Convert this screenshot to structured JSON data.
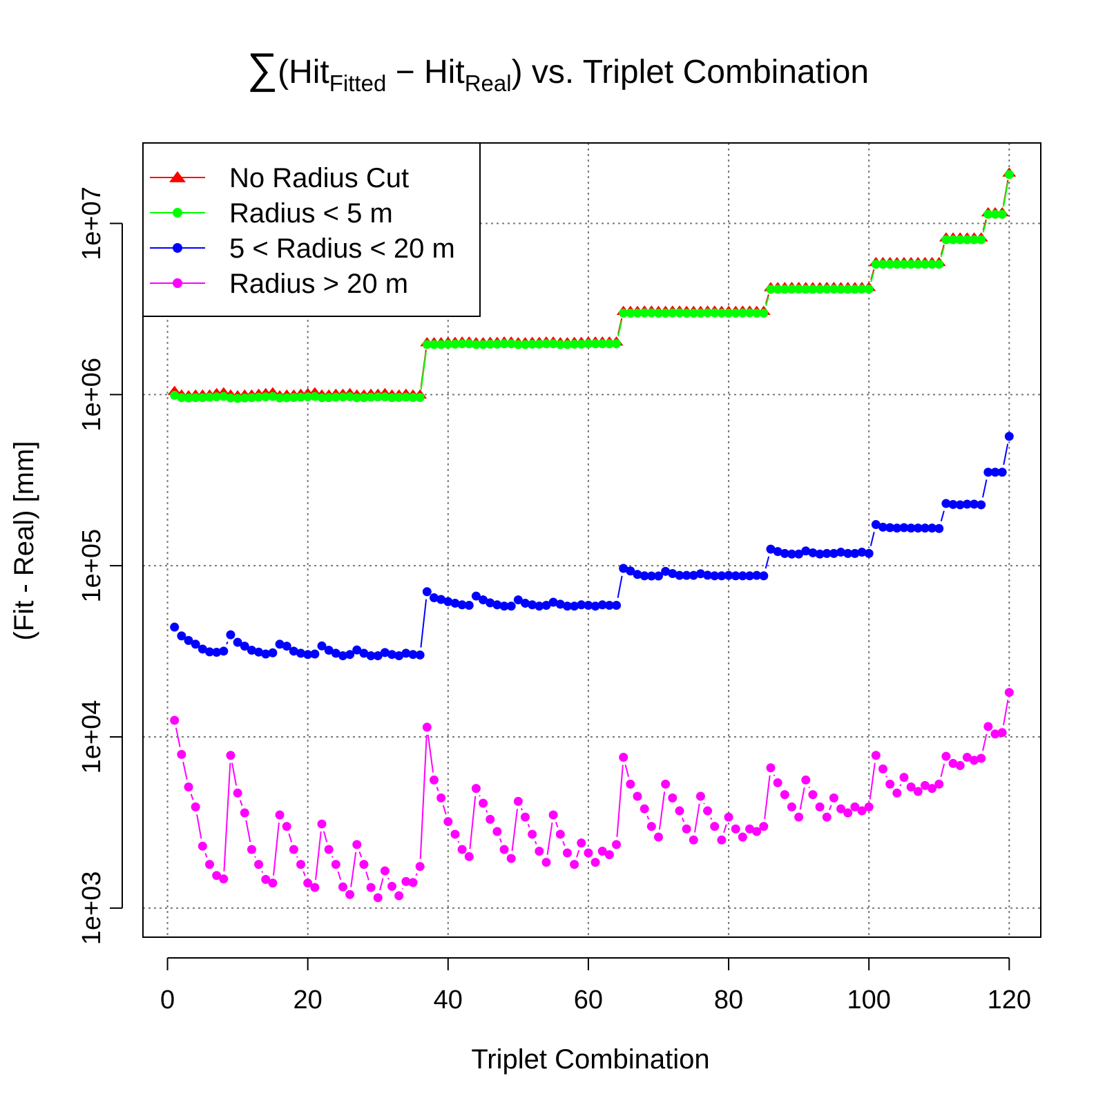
{
  "chart_data": {
    "type": "line",
    "title": {
      "sum_symbol": "∑",
      "open": "(Hit",
      "sub1": "Fitted",
      "minus": " − Hit",
      "sub2": "Real",
      "close": ") vs. Triplet Combination"
    },
    "xlabel": "Triplet Combination",
    "ylabel": "(Fit - Real) [mm]",
    "xlim": [
      -3.5,
      124.5
    ],
    "ylim_log10": [
      2.83,
      7.47
    ],
    "log_y": true,
    "grid": true,
    "legend_position": "top-left",
    "x_ticks": [
      "0",
      "20",
      "40",
      "60",
      "80",
      "100",
      "120"
    ],
    "y_ticks": [
      "1e+03",
      "1e+04",
      "1e+05",
      "1e+06",
      "1e+07"
    ],
    "x": [
      1,
      2,
      3,
      4,
      5,
      6,
      7,
      8,
      9,
      10,
      11,
      12,
      13,
      14,
      15,
      16,
      17,
      18,
      19,
      20,
      21,
      22,
      23,
      24,
      25,
      26,
      27,
      28,
      29,
      30,
      31,
      32,
      33,
      34,
      35,
      36,
      37,
      38,
      39,
      40,
      41,
      42,
      43,
      44,
      45,
      46,
      47,
      48,
      49,
      50,
      51,
      52,
      53,
      54,
      55,
      56,
      57,
      58,
      59,
      60,
      61,
      62,
      63,
      64,
      65,
      66,
      67,
      68,
      69,
      70,
      71,
      72,
      73,
      74,
      75,
      76,
      77,
      78,
      79,
      80,
      81,
      82,
      83,
      84,
      85,
      86,
      87,
      88,
      89,
      90,
      91,
      92,
      93,
      94,
      95,
      96,
      97,
      98,
      99,
      100,
      101,
      102,
      103,
      104,
      105,
      106,
      107,
      108,
      109,
      110,
      111,
      112,
      113,
      114,
      115,
      116,
      117,
      118,
      119,
      120
    ],
    "series": [
      {
        "name": "No Radius Cut",
        "color": "#ff0000",
        "marker": "triangle",
        "values": [
          1050000,
          1000000,
          990000,
          1000000,
          1000000,
          1000000,
          1020000,
          1030000,
          1000000,
          990000,
          1000000,
          1000000,
          1010000,
          1020000,
          1030000,
          990000,
          1000000,
          1000000,
          1010000,
          1020000,
          1030000,
          1000000,
          1000000,
          1010000,
          1010000,
          1020000,
          1000000,
          1000000,
          1010000,
          1010000,
          1020000,
          1000000,
          1000000,
          1010000,
          1000000,
          1000000,
          2020000,
          2020000,
          2020000,
          2030000,
          2030000,
          2040000,
          2040000,
          2020000,
          2020000,
          2030000,
          2030000,
          2040000,
          2040000,
          2020000,
          2020000,
          2030000,
          2030000,
          2040000,
          2040000,
          2020000,
          2020000,
          2030000,
          2030000,
          2040000,
          2040000,
          2040000,
          2040000,
          2040000,
          3080000,
          3080000,
          3080000,
          3090000,
          3090000,
          3080000,
          3080000,
          3090000,
          3090000,
          3080000,
          3080000,
          3080000,
          3090000,
          3090000,
          3080000,
          3080000,
          3080000,
          3090000,
          3090000,
          3080000,
          3080000,
          4240000,
          4240000,
          4240000,
          4250000,
          4250000,
          4240000,
          4240000,
          4240000,
          4250000,
          4250000,
          4240000,
          4240000,
          4240000,
          4250000,
          4250000,
          5940000,
          5940000,
          5940000,
          5940000,
          5940000,
          5940000,
          5940000,
          5940000,
          5940000,
          5940000,
          8270000,
          8270000,
          8270000,
          8270000,
          8270000,
          8270000,
          11600000,
          11600000,
          11600000,
          19800000
        ]
      },
      {
        "name": "Radius < 5 m",
        "color": "#00ff00",
        "marker": "circle",
        "values": [
          990000,
          960000,
          955000,
          960000,
          960000,
          965000,
          970000,
          975000,
          955000,
          950000,
          955000,
          960000,
          965000,
          970000,
          975000,
          955000,
          958000,
          962000,
          966000,
          970000,
          975000,
          958000,
          960000,
          965000,
          968000,
          972000,
          958000,
          960000,
          965000,
          968000,
          970000,
          960000,
          962000,
          965000,
          962000,
          962000,
          1960000,
          1960000,
          1960000,
          1970000,
          1970000,
          1980000,
          1980000,
          1960000,
          1960000,
          1970000,
          1970000,
          1980000,
          1980000,
          1960000,
          1960000,
          1970000,
          1970000,
          1980000,
          1980000,
          1960000,
          1960000,
          1970000,
          1970000,
          1980000,
          1980000,
          1980000,
          1980000,
          1980000,
          2990000,
          2990000,
          2990000,
          3000000,
          3000000,
          2990000,
          2990000,
          3000000,
          3000000,
          2990000,
          2990000,
          2990000,
          3000000,
          3000000,
          2990000,
          2990000,
          2990000,
          3000000,
          3000000,
          2990000,
          2990000,
          4120000,
          4120000,
          4120000,
          4130000,
          4130000,
          4120000,
          4120000,
          4120000,
          4130000,
          4130000,
          4120000,
          4120000,
          4120000,
          4130000,
          4130000,
          5770000,
          5770000,
          5770000,
          5770000,
          5770000,
          5770000,
          5770000,
          5770000,
          5770000,
          5770000,
          8030000,
          8030000,
          8030000,
          8030000,
          8030000,
          8030000,
          11300000,
          11300000,
          11300000,
          19300000
        ]
      },
      {
        "name": "5 < Radius < 20 m",
        "color": "#0000ff",
        "marker": "circle",
        "values": [
          43800,
          38900,
          36600,
          34800,
          32600,
          31400,
          31200,
          31700,
          39500,
          35700,
          33900,
          32100,
          31300,
          30500,
          31000,
          34800,
          33900,
          31700,
          30800,
          30300,
          30500,
          34000,
          32100,
          30800,
          29800,
          30300,
          32200,
          30800,
          29800,
          29800,
          31100,
          30300,
          29800,
          30800,
          30300,
          30100,
          70500,
          65000,
          63500,
          61700,
          60400,
          59100,
          58700,
          66500,
          63200,
          60700,
          59100,
          58100,
          58100,
          63200,
          60400,
          59100,
          58100,
          58700,
          61200,
          59600,
          58100,
          58100,
          59100,
          58700,
          58100,
          59100,
          58700,
          58700,
          96500,
          93200,
          89000,
          87300,
          87100,
          87100,
          92700,
          90000,
          87800,
          87800,
          87800,
          89800,
          88000,
          87300,
          87300,
          87800,
          87300,
          87300,
          87300,
          87800,
          87300,
          125000,
          121000,
          118000,
          117000,
          117000,
          122000,
          119000,
          117000,
          118000,
          118000,
          120000,
          118000,
          118000,
          120000,
          118000,
          174000,
          168000,
          167000,
          166000,
          167000,
          166000,
          166000,
          166000,
          166000,
          165000,
          231000,
          228000,
          227000,
          229000,
          229000,
          227000,
          352000,
          352000,
          352000,
          570000
        ]
      },
      {
        "name": "Radius > 20 m",
        "color": "#ff00ff",
        "marker": "circle",
        "values": [
          12500,
          7900,
          5100,
          3900,
          2300,
          1800,
          1550,
          1480,
          7800,
          4700,
          3600,
          2200,
          1800,
          1470,
          1400,
          3500,
          3000,
          2200,
          1800,
          1400,
          1320,
          3100,
          2200,
          1800,
          1330,
          1200,
          2350,
          1800,
          1320,
          1150,
          1650,
          1340,
          1180,
          1430,
          1410,
          1750,
          11400,
          5600,
          4400,
          3200,
          2700,
          2200,
          2000,
          5000,
          4100,
          3300,
          2800,
          2200,
          1950,
          4200,
          3400,
          2700,
          2150,
          1850,
          3500,
          2700,
          2100,
          1800,
          2400,
          2100,
          1850,
          2150,
          2050,
          2350,
          7600,
          5300,
          4500,
          3800,
          3000,
          2600,
          5300,
          4400,
          3700,
          2900,
          2500,
          4500,
          3700,
          3000,
          2500,
          3400,
          2900,
          2600,
          2900,
          2800,
          3000,
          6600,
          5400,
          4600,
          3900,
          3400,
          5600,
          4600,
          3900,
          3400,
          4400,
          3800,
          3600,
          3900,
          3700,
          3900,
          7800,
          6500,
          5300,
          4700,
          5800,
          5100,
          4800,
          5200,
          5000,
          5300,
          7700,
          7000,
          6800,
          7600,
          7300,
          7500,
          11500,
          10400,
          10600,
          18200
        ]
      }
    ]
  }
}
